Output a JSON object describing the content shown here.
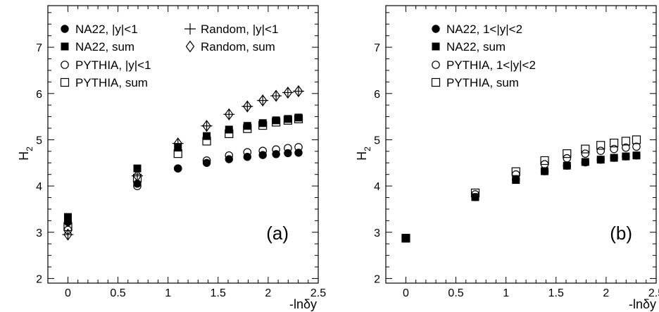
{
  "chart_data": [
    {
      "type": "scatter",
      "panel_label": "(a)",
      "xlabel": "-lnδy",
      "ylabel": "H",
      "ylabel_sub": "2",
      "xlim": [
        -0.2,
        2.5
      ],
      "ylim": [
        1.9,
        7.9
      ],
      "xticks": [
        0,
        0.5,
        1,
        1.5,
        2,
        2.5
      ],
      "xtick_labels": [
        "0",
        "0.5",
        "1",
        "1.5",
        "2",
        "2.5"
      ],
      "yticks": [
        2,
        3,
        4,
        5,
        6,
        7
      ],
      "ytick_labels": [
        "2",
        "3",
        "4",
        "5",
        "6",
        "7"
      ],
      "grid": false,
      "legend_position": "top",
      "series": [
        {
          "name": "NA22, |y|<1",
          "marker": "filled-circle",
          "x": [
            0,
            0.693,
            1.099,
            1.386,
            1.609,
            1.792,
            1.946,
            2.079,
            2.197,
            2.303
          ],
          "y": [
            3.22,
            4.05,
            4.38,
            4.5,
            4.58,
            4.63,
            4.67,
            4.69,
            4.71,
            4.72
          ]
        },
        {
          "name": "NA22, sum",
          "marker": "filled-square",
          "x": [
            0,
            0.693,
            1.099,
            1.386,
            1.609,
            1.792,
            1.946,
            2.079,
            2.197,
            2.303
          ],
          "y": [
            3.33,
            4.38,
            4.83,
            5.08,
            5.22,
            5.3,
            5.36,
            5.42,
            5.45,
            5.48
          ]
        },
        {
          "name": "PYTHIA, |y|<1",
          "marker": "open-circle",
          "x": [
            0,
            0.693,
            1.099,
            1.386,
            1.609,
            1.792,
            1.946,
            2.079,
            2.197,
            2.303
          ],
          "y": [
            3.05,
            4.0,
            4.38,
            4.55,
            4.66,
            4.73,
            4.76,
            4.79,
            4.82,
            4.84
          ]
        },
        {
          "name": "PYTHIA,  sum",
          "marker": "open-square",
          "x": [
            0,
            0.693,
            1.099,
            1.386,
            1.609,
            1.792,
            1.946,
            2.079,
            2.197,
            2.303
          ],
          "y": [
            3.12,
            4.17,
            4.7,
            4.97,
            5.13,
            5.24,
            5.31,
            5.38,
            5.42,
            5.45
          ]
        },
        {
          "name": "Random, |y|<1",
          "marker": "plus",
          "x": [
            0,
            0.693,
            1.099,
            1.386,
            1.609,
            1.792,
            1.946,
            2.079,
            2.197,
            2.303
          ],
          "y": [
            2.95,
            4.22,
            4.92,
            5.3,
            5.55,
            5.72,
            5.85,
            5.95,
            6.02,
            6.05
          ]
        },
        {
          "name": "Random, sum",
          "marker": "open-diamond",
          "x": [
            0,
            0.693,
            1.099,
            1.386,
            1.609,
            1.792,
            1.946,
            2.079,
            2.197,
            2.303
          ],
          "y": [
            2.95,
            4.22,
            4.92,
            5.3,
            5.55,
            5.72,
            5.85,
            5.95,
            6.02,
            6.05
          ]
        }
      ]
    },
    {
      "type": "scatter",
      "panel_label": "(b)",
      "xlabel": "-lnδy",
      "ylabel": "H",
      "ylabel_sub": "2",
      "xlim": [
        -0.2,
        2.5
      ],
      "ylim": [
        1.9,
        7.9
      ],
      "xticks": [
        0,
        0.5,
        1,
        1.5,
        2,
        2.5
      ],
      "xtick_labels": [
        "0",
        "0.5",
        "1",
        "1.5",
        "2",
        "2.5"
      ],
      "yticks": [
        2,
        3,
        4,
        5,
        6,
        7
      ],
      "ytick_labels": [
        "2",
        "3",
        "4",
        "5",
        "6",
        "7"
      ],
      "grid": false,
      "legend_position": "top-left",
      "series": [
        {
          "name": "NA22,  1<|y|<2",
          "marker": "filled-circle",
          "x": [
            0,
            0.693,
            1.099,
            1.386,
            1.609,
            1.792,
            1.946,
            2.079,
            2.197,
            2.303
          ],
          "y": [
            2.88,
            3.76,
            4.14,
            4.32,
            4.44,
            4.51,
            4.57,
            4.61,
            4.64,
            4.66
          ]
        },
        {
          "name": "NA22,  sum",
          "marker": "filled-square",
          "x": [
            0,
            0.693,
            1.099,
            1.386,
            1.609,
            1.792,
            1.946,
            2.079,
            2.197,
            2.303
          ],
          "y": [
            2.88,
            3.76,
            4.13,
            4.32,
            4.44,
            4.52,
            4.57,
            4.61,
            4.64,
            4.66
          ]
        },
        {
          "name": "PYTHIA,  1<|y|<2",
          "marker": "open-circle",
          "x": [
            0,
            0.693,
            1.099,
            1.386,
            1.609,
            1.792,
            1.946,
            2.079,
            2.197,
            2.303
          ],
          "y": [
            2.87,
            3.82,
            4.25,
            4.47,
            4.6,
            4.7,
            4.76,
            4.8,
            4.83,
            4.85
          ]
        },
        {
          "name": "PYTHIA,   sum",
          "marker": "open-square",
          "x": [
            0,
            0.693,
            1.099,
            1.386,
            1.609,
            1.792,
            1.946,
            2.079,
            2.197,
            2.303
          ],
          "y": [
            2.87,
            3.85,
            4.31,
            4.55,
            4.7,
            4.8,
            4.88,
            4.93,
            4.97,
            5.0
          ]
        }
      ]
    }
  ]
}
